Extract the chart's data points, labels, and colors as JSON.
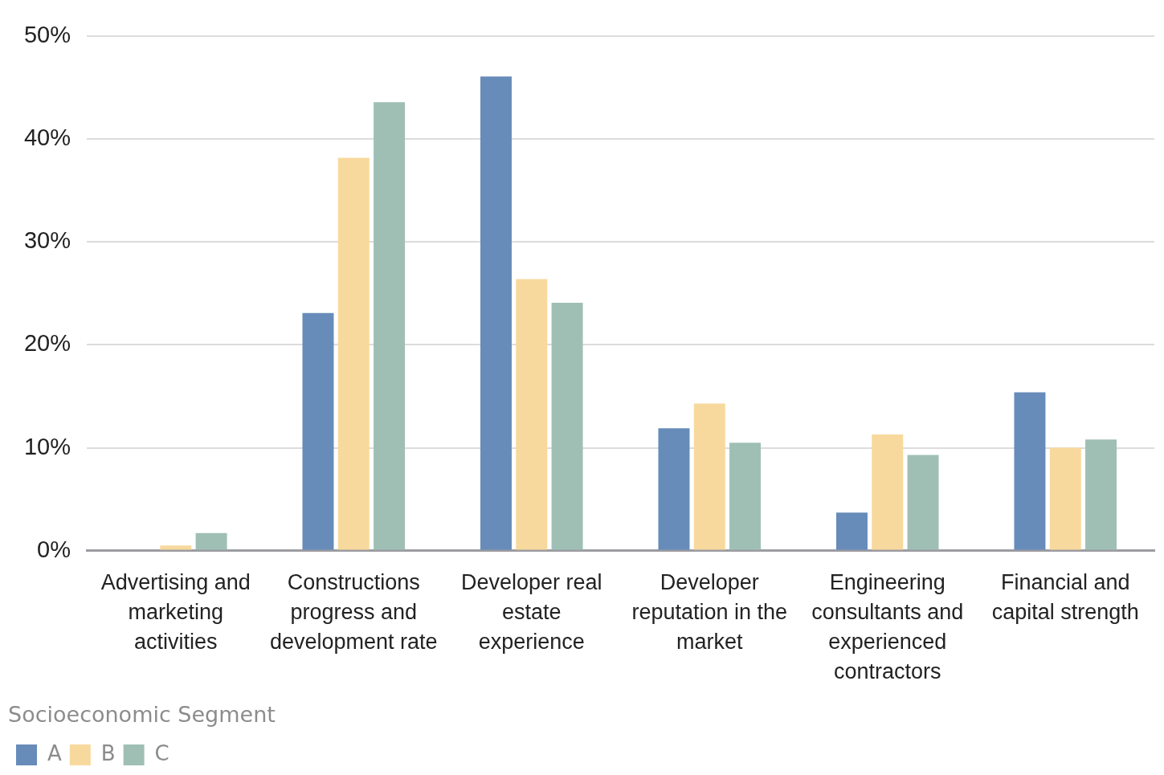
{
  "chart_data": {
    "type": "bar",
    "categories": [
      "Advertising and marketing activities",
      "Constructions progress and development rate",
      "Developer real estate experience",
      "Developer reputation in the market",
      "Engineering consultants and experienced contractors",
      "Financial and capital strength"
    ],
    "series": [
      {
        "name": "A",
        "color": "#678cb9",
        "values": [
          0,
          23.1,
          46.1,
          11.9,
          3.7,
          15.4
        ]
      },
      {
        "name": "B",
        "color": "#f8d99d",
        "values": [
          0.5,
          38.2,
          26.4,
          14.3,
          11.3,
          10.0
        ]
      },
      {
        "name": "C",
        "color": "#9fbfb5",
        "values": [
          1.7,
          43.6,
          24.1,
          10.5,
          9.3,
          10.8
        ]
      }
    ],
    "ylim": [
      0,
      50
    ],
    "yticks": [
      {
        "value": 0,
        "label": "0%"
      },
      {
        "value": 10,
        "label": "10%"
      },
      {
        "value": 20,
        "label": "20%"
      },
      {
        "value": 30,
        "label": "30%"
      },
      {
        "value": 40,
        "label": "40%"
      },
      {
        "value": 50,
        "label": "50%"
      }
    ],
    "grid": "y",
    "legend": "bottom left",
    "legend_title": "Socioeconomic Segment"
  }
}
